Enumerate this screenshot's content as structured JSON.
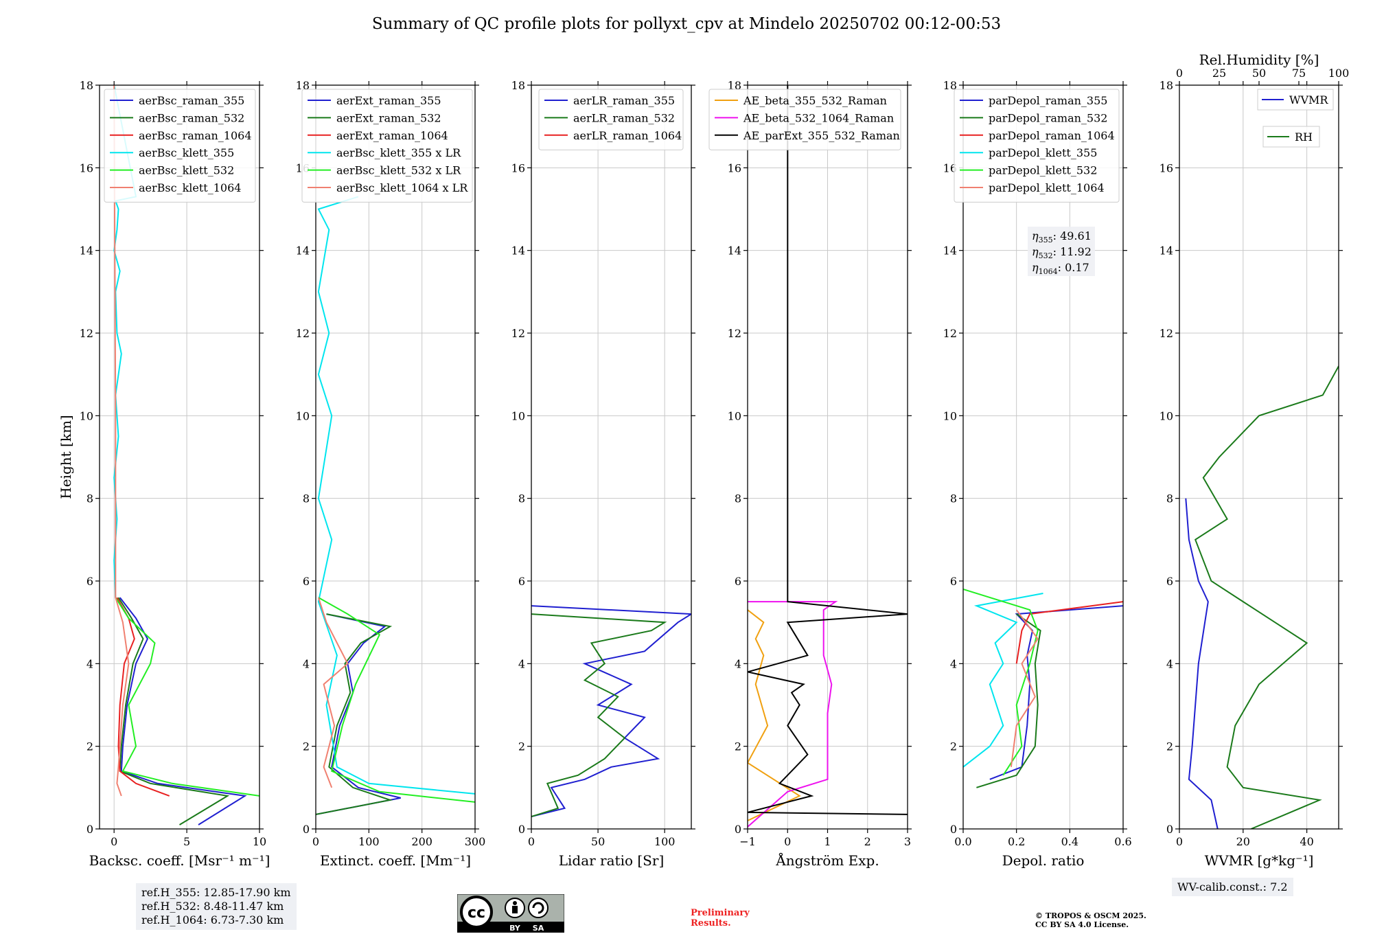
{
  "title": "Summary of QC profile plots for pollyxt_cpv at Mindelo 20250702 00:12-00:53",
  "chart_data": [
    {
      "type": "line",
      "xlabel": "Backsc. coeff. [Msr⁻¹ m⁻¹]",
      "ylabel": "Height [km]",
      "xlim": [
        -1,
        10
      ],
      "ylim": [
        0,
        18
      ],
      "xticks": [
        0,
        5,
        10
      ],
      "yticks": [
        0,
        2,
        4,
        6,
        8,
        10,
        12,
        14,
        16,
        18
      ],
      "grid": true,
      "legend": "top",
      "series": [
        {
          "name": "aerBsc_raman_355",
          "color": "#1f1fd0",
          "x": [
            5.8,
            9.0,
            3.0,
            0.5,
            0.6,
            0.9,
            1.5,
            2.3,
            1.5,
            0.4
          ],
          "y": [
            0.1,
            0.8,
            1.1,
            1.4,
            2.0,
            3.0,
            4.0,
            4.6,
            5.1,
            5.6
          ]
        },
        {
          "name": "aerBsc_raman_532",
          "color": "#1a7a1a",
          "x": [
            4.5,
            7.8,
            2.5,
            0.4,
            0.5,
            0.8,
            1.3,
            2.0,
            1.2,
            0.3
          ],
          "y": [
            0.1,
            0.8,
            1.1,
            1.4,
            2.0,
            3.0,
            4.0,
            4.6,
            5.1,
            5.6
          ]
        },
        {
          "name": "aerBsc_raman_1064",
          "color": "#e82020",
          "x": [
            3.8,
            1.5,
            0.4,
            0.3,
            0.4,
            0.7,
            1.4,
            1.0,
            0.2
          ],
          "y": [
            0.8,
            1.1,
            1.4,
            2.0,
            3.0,
            4.0,
            4.6,
            5.1,
            5.6
          ]
        },
        {
          "name": "aerBsc_klett_355",
          "color": "#00e5ee",
          "x": [
            0.1,
            0.0,
            0.2,
            0.0,
            0.3,
            0.1,
            0.5,
            0.2,
            0.1,
            0.4,
            0.0,
            0.2,
            0.3,
            0.1,
            1.5,
            0.0
          ],
          "y": [
            5.6,
            6.5,
            7.5,
            8.5,
            9.5,
            10.5,
            11.5,
            12.0,
            13.0,
            13.5,
            14.0,
            14.5,
            15.0,
            15.2,
            15.3,
            18.0
          ]
        },
        {
          "name": "aerBsc_klett_532",
          "color": "#22ee22",
          "x": [
            10.0,
            4.0,
            0.6,
            1.5,
            1.0,
            2.5,
            2.8,
            1.0,
            0.1
          ],
          "y": [
            0.8,
            1.1,
            1.4,
            2.0,
            3.0,
            4.0,
            4.5,
            5.1,
            5.6
          ]
        },
        {
          "name": "aerBsc_klett_1064",
          "color": "#f08070",
          "x": [
            0.5,
            0.2,
            0.3,
            0.6,
            1.0,
            0.6,
            0.1,
            0.1,
            0.0
          ],
          "y": [
            0.8,
            1.1,
            1.5,
            3.0,
            4.0,
            5.0,
            5.6,
            10.0,
            18.0
          ]
        }
      ]
    },
    {
      "type": "line",
      "xlabel": "Extinct. coeff. [Mm⁻¹]",
      "xlim": [
        0,
        300
      ],
      "ylim": [
        0,
        18
      ],
      "xticks": [
        0,
        100,
        200,
        300
      ],
      "grid": true,
      "legend": "top",
      "series": [
        {
          "name": "aerExt_raman_355",
          "color": "#1f1fd0",
          "x": [
            0,
            160,
            80,
            30,
            45,
            70,
            60,
            90,
            130,
            20
          ],
          "y": [
            0.35,
            0.75,
            1.0,
            1.5,
            2.5,
            3.3,
            4.0,
            4.5,
            4.9,
            5.2
          ]
        },
        {
          "name": "aerExt_raman_532",
          "color": "#1a7a1a",
          "x": [
            0,
            140,
            70,
            25,
            40,
            65,
            55,
            85,
            140,
            20
          ],
          "y": [
            0.35,
            0.7,
            1.0,
            1.5,
            2.5,
            3.3,
            4.0,
            4.5,
            4.9,
            5.2
          ]
        },
        {
          "name": "aerExt_raman_1064",
          "color": "#e82020",
          "x": [],
          "y": []
        },
        {
          "name": "aerBsc_klett_355 x LR",
          "color": "#00e5ee",
          "x": [
            300,
            100,
            40,
            20,
            40,
            5,
            30,
            5,
            30,
            5,
            25,
            5,
            25,
            5,
            80
          ],
          "y": [
            0.85,
            1.1,
            1.5,
            3.0,
            4.2,
            5.5,
            7.0,
            8.0,
            10.0,
            11.0,
            12.0,
            13.0,
            14.5,
            15.0,
            15.3
          ]
        },
        {
          "name": "aerBsc_klett_532 x LR",
          "color": "#22ee22",
          "x": [
            300,
            120,
            30,
            50,
            75,
            120,
            60,
            5
          ],
          "y": [
            0.65,
            0.9,
            1.4,
            2.5,
            3.5,
            4.7,
            5.2,
            5.6
          ]
        },
        {
          "name": "aerBsc_klett_1064 x LR",
          "color": "#f08070",
          "x": [
            30,
            15,
            35,
            15,
            60,
            20,
            5
          ],
          "y": [
            1.0,
            1.5,
            2.5,
            3.5,
            4.0,
            5.0,
            5.6
          ]
        }
      ]
    },
    {
      "type": "line",
      "xlabel": "Lidar ratio [Sr]",
      "xlim": [
        0,
        120
      ],
      "ylim": [
        0,
        18
      ],
      "xticks": [
        0,
        50,
        100
      ],
      "grid": true,
      "legend": "top",
      "series": [
        {
          "name": "aerLR_raman_355",
          "color": "#1f1fd0",
          "x": [
            0,
            25,
            15,
            40,
            60,
            95,
            70,
            85,
            50,
            75,
            40,
            85,
            110,
            120,
            0
          ],
          "y": [
            0.3,
            0.5,
            1.0,
            1.2,
            1.5,
            1.7,
            2.2,
            2.7,
            3.0,
            3.5,
            4.0,
            4.3,
            5.0,
            5.2,
            5.4
          ]
        },
        {
          "name": "aerLR_raman_532",
          "color": "#1a7a1a",
          "x": [
            0,
            20,
            12,
            35,
            55,
            70,
            50,
            65,
            40,
            55,
            45,
            90,
            100,
            0
          ],
          "y": [
            0.3,
            0.5,
            1.1,
            1.3,
            1.7,
            2.2,
            2.7,
            3.2,
            3.6,
            4.0,
            4.5,
            4.8,
            5.0,
            5.2
          ]
        },
        {
          "name": "aerLR_raman_1064",
          "color": "#e82020",
          "x": [],
          "y": []
        }
      ]
    },
    {
      "type": "line",
      "xlabel": "Ångström Exp.",
      "xlim": [
        -1,
        3
      ],
      "ylim": [
        0,
        18
      ],
      "xticks": [
        -1,
        0,
        1,
        2,
        3
      ],
      "grid": true,
      "legend": "top",
      "series": [
        {
          "name": "AE_beta_355_532_Raman",
          "color": "#f0a010",
          "x": [
            -1,
            0.3,
            -1,
            -0.5,
            -0.8,
            -0.6,
            -0.8,
            -0.6,
            -1
          ],
          "y": [
            0.2,
            0.8,
            1.6,
            2.5,
            3.5,
            4.2,
            4.6,
            5.0,
            5.3
          ]
        },
        {
          "name": "AE_beta_532_1064_Raman",
          "color": "#ee10ee",
          "x": [
            -1,
            0.0,
            1.0,
            1.0,
            1.0,
            1.1,
            0.9,
            0.9,
            0.9,
            1.2,
            -1
          ],
          "y": [
            0.05,
            0.9,
            1.2,
            2.0,
            2.8,
            3.5,
            4.2,
            4.8,
            5.3,
            5.5,
            5.5
          ]
        },
        {
          "name": "AE_parExt_355_532_Raman",
          "color": "#000000",
          "x": [
            3,
            -1,
            0.6,
            -0.2,
            0.5,
            0.0,
            0.3,
            0.1,
            0.4,
            -1,
            0.5,
            0.0,
            3,
            0,
            0
          ],
          "y": [
            0.35,
            0.4,
            0.8,
            1.1,
            1.8,
            2.5,
            3.0,
            3.3,
            3.5,
            3.8,
            4.2,
            5.0,
            5.2,
            5.5,
            18.0
          ]
        }
      ]
    },
    {
      "type": "line",
      "xlabel": "Depol. ratio",
      "xlim": [
        0,
        0.6
      ],
      "ylim": [
        0,
        18
      ],
      "xticks": [
        0.0,
        0.2,
        0.4,
        0.6
      ],
      "grid": true,
      "legend": "top-left",
      "annotations": [
        {
          "symbol": "η",
          "subscript": "355",
          "text": ": 49.61"
        },
        {
          "symbol": "η",
          "subscript": "532",
          "text": ": 11.92"
        },
        {
          "symbol": "η",
          "subscript": "1064",
          "text": ": 0.17"
        }
      ],
      "series": [
        {
          "name": "parDepol_raman_355",
          "color": "#1f1fd0",
          "x": [
            0.1,
            0.22,
            0.24,
            0.25,
            0.24,
            0.26,
            0.2,
            0.6
          ],
          "y": [
            1.2,
            1.5,
            2.5,
            3.5,
            4.2,
            4.8,
            5.2,
            5.4
          ]
        },
        {
          "name": "parDepol_raman_532",
          "color": "#1a7a1a",
          "x": [
            0.05,
            0.2,
            0.27,
            0.28,
            0.27,
            0.29,
            0.2
          ],
          "y": [
            1.0,
            1.3,
            2.0,
            3.0,
            4.0,
            4.8,
            5.2
          ]
        },
        {
          "name": "parDepol_raman_1064",
          "color": "#e82020",
          "x": [
            0.2,
            0.22,
            0.25,
            0.6
          ],
          "y": [
            4.0,
            4.8,
            5.2,
            5.5
          ]
        },
        {
          "name": "parDepol_klett_355",
          "color": "#00e5ee",
          "x": [
            0.0,
            0.1,
            0.15,
            0.1,
            0.15,
            0.12,
            0.2,
            0.05,
            0.3
          ],
          "y": [
            1.5,
            2.0,
            2.5,
            3.5,
            4.0,
            4.5,
            5.0,
            5.4,
            5.7
          ]
        },
        {
          "name": "parDepol_klett_532",
          "color": "#22ee22",
          "x": [
            0.15,
            0.22,
            0.2,
            0.25,
            0.28,
            0.25,
            0.0
          ],
          "y": [
            1.3,
            2.0,
            3.0,
            4.0,
            4.8,
            5.3,
            5.8
          ]
        },
        {
          "name": "parDepol_klett_1064",
          "color": "#f08070",
          "x": [
            0.18,
            0.2,
            0.27,
            0.22,
            0.28,
            0.2
          ],
          "y": [
            1.5,
            2.5,
            3.2,
            4.0,
            4.6,
            5.3
          ]
        }
      ]
    },
    {
      "type": "line",
      "xlabel": "WVMR [g*kg⁻¹]",
      "xlabel_top": "Rel.Humidity [%]",
      "xlim": [
        0,
        50
      ],
      "xlim_top": [
        0,
        100
      ],
      "ylim": [
        0,
        18
      ],
      "xticks": [
        0,
        20,
        40
      ],
      "xticks_top": [
        0,
        25,
        50,
        75,
        100
      ],
      "grid": true,
      "legend": "top-right",
      "series": [
        {
          "name": "WVMR",
          "color": "#1f1fd0",
          "x": [
            12,
            10,
            3,
            4,
            5,
            6,
            8,
            9,
            6,
            3,
            2
          ],
          "y": [
            0.0,
            0.7,
            1.2,
            2.0,
            3.0,
            4.0,
            5.0,
            5.5,
            6.0,
            7.0,
            8.0
          ]
        },
        {
          "name": "RH",
          "color": "#1a7a1a",
          "x": [
            45,
            88,
            40,
            30,
            35,
            50,
            80,
            60,
            40,
            20,
            10,
            30,
            15,
            25,
            50,
            90,
            100
          ],
          "y": [
            0.0,
            0.7,
            1.0,
            1.5,
            2.5,
            3.5,
            4.5,
            5.0,
            5.5,
            6.0,
            7.0,
            7.5,
            8.5,
            9.0,
            10.0,
            10.5,
            11.2
          ]
        }
      ]
    }
  ],
  "ref_heights": [
    "ref.H_355: 12.85-17.90 km",
    "ref.H_532: 8.48-11.47 km",
    "ref.H_1064: 6.73-7.30 km"
  ],
  "wv_calib": "WV-calib.const.: 7.2",
  "preliminary": [
    "Preliminary",
    "Results."
  ],
  "copyright": [
    "© TROPOS & OSCM 2025.",
    "CC BY SA 4.0 License."
  ],
  "cc_badge": {
    "cc": "cc",
    "by": "BY",
    "sa": "SA"
  }
}
